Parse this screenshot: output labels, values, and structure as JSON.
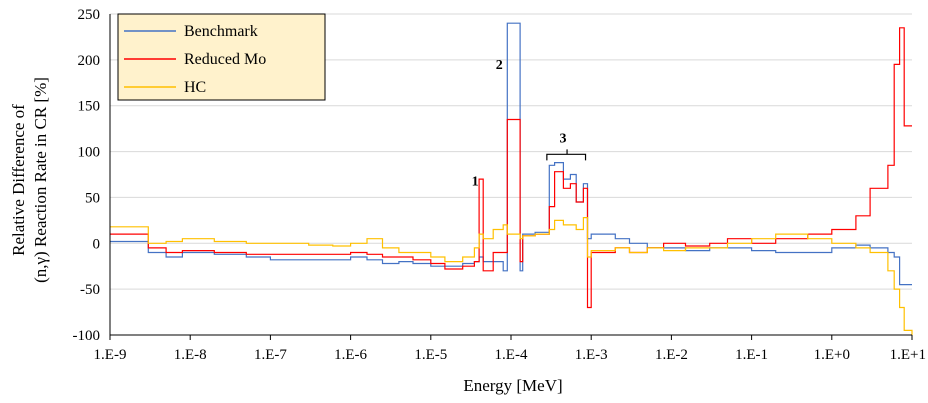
{
  "chart_data": {
    "type": "line",
    "xlabel": "Energy [MeV]",
    "ylabel_line1": "Relative Difference of",
    "ylabel_line2": "(n,γ) Reaction Rate in CR [%]",
    "x_scale": "log",
    "xlim": [
      1e-09,
      10
    ],
    "ylim": [
      -100,
      250
    ],
    "x_tick_values": [
      1e-09,
      1e-08,
      1e-07,
      1e-06,
      1e-05,
      0.0001,
      0.001,
      0.01,
      0.1,
      1,
      10
    ],
    "x_tick_labels": [
      "1.E-9",
      "1.E-8",
      "1.E-7",
      "1.E-6",
      "1.E-5",
      "1.E-4",
      "1.E-3",
      "1.E-2",
      "1.E-1",
      "1.E+0",
      "1.E+1"
    ],
    "y_ticks": [
      250,
      200,
      150,
      100,
      50,
      0,
      -50,
      -100
    ],
    "grid": "horizontal",
    "legend_position": "top-left",
    "annotations": [
      {
        "label": "1",
        "x": 4e-05,
        "y": 63
      },
      {
        "label": "2",
        "x": 8e-05,
        "y": 190
      },
      {
        "label": "3",
        "x": 0.0005,
        "y": 110
      }
    ],
    "series": [
      {
        "name": "Benchmark",
        "color": "#4472C4",
        "x": [
          1e-09,
          3e-09,
          5e-09,
          8e-09,
          2e-08,
          5e-08,
          1e-07,
          3e-07,
          6e-07,
          1e-06,
          1.6e-06,
          2.5e-06,
          4e-06,
          6e-06,
          1e-05,
          1.5e-05,
          2.5e-05,
          3.5e-05,
          4e-05,
          4.5e-05,
          6e-05,
          8e-05,
          9e-05,
          0.0001,
          0.00013,
          0.00014,
          0.0002,
          0.0003,
          0.00035,
          0.00045,
          0.00055,
          0.00065,
          0.0008,
          0.0009,
          0.001,
          0.002,
          0.003,
          0.005,
          0.008,
          0.015,
          0.03,
          0.05,
          0.1,
          0.2,
          0.5,
          1,
          2,
          3,
          5,
          6,
          7,
          8,
          10
        ],
        "y": [
          2,
          -10,
          -15,
          -10,
          -12,
          -15,
          -18,
          -18,
          -18,
          -15,
          -18,
          -22,
          -20,
          -22,
          -25,
          -25,
          -22,
          -20,
          -15,
          -20,
          -20,
          -30,
          240,
          240,
          -30,
          10,
          12,
          85,
          88,
          70,
          75,
          45,
          65,
          5,
          10,
          5,
          0,
          -5,
          -5,
          -8,
          -5,
          -5,
          -8,
          -10,
          -10,
          -5,
          -2,
          -5,
          -10,
          -15,
          -45,
          -45,
          -45
        ]
      },
      {
        "name": "Reduced Mo",
        "color": "#FF0000",
        "x": [
          1e-09,
          3e-09,
          5e-09,
          8e-09,
          2e-08,
          5e-08,
          1e-07,
          3e-07,
          6e-07,
          1e-06,
          1.6e-06,
          2.5e-06,
          4e-06,
          6e-06,
          1e-05,
          1.5e-05,
          2.5e-05,
          3.5e-05,
          4e-05,
          4.5e-05,
          6e-05,
          8e-05,
          9e-05,
          0.0001,
          0.00013,
          0.00014,
          0.0002,
          0.0003,
          0.00035,
          0.00045,
          0.00055,
          0.00065,
          0.0008,
          0.0009,
          0.001,
          0.002,
          0.003,
          0.005,
          0.008,
          0.015,
          0.03,
          0.05,
          0.1,
          0.2,
          0.5,
          1,
          2,
          3,
          5,
          6,
          7,
          8,
          10
        ],
        "y": [
          10,
          -5,
          -10,
          -8,
          -10,
          -12,
          -12,
          -12,
          -12,
          -10,
          -12,
          -15,
          -15,
          -18,
          -22,
          -28,
          -25,
          -20,
          70,
          -30,
          -10,
          -10,
          135,
          135,
          -20,
          8,
          10,
          40,
          78,
          60,
          65,
          45,
          60,
          -70,
          -10,
          -5,
          -10,
          -5,
          0,
          -3,
          0,
          5,
          0,
          5,
          10,
          15,
          30,
          60,
          85,
          195,
          235,
          128,
          128
        ]
      },
      {
        "name": "HC",
        "color": "#FFC000",
        "x": [
          1e-09,
          3e-09,
          5e-09,
          8e-09,
          2e-08,
          5e-08,
          1e-07,
          3e-07,
          6e-07,
          1e-06,
          1.6e-06,
          2.5e-06,
          4e-06,
          6e-06,
          1e-05,
          1.5e-05,
          2.5e-05,
          3.5e-05,
          4e-05,
          4.5e-05,
          6e-05,
          8e-05,
          9e-05,
          0.0001,
          0.00013,
          0.00014,
          0.0002,
          0.0003,
          0.00035,
          0.00045,
          0.00055,
          0.00065,
          0.0008,
          0.0009,
          0.001,
          0.002,
          0.003,
          0.005,
          0.008,
          0.015,
          0.03,
          0.05,
          0.1,
          0.2,
          0.5,
          1,
          2,
          3,
          5,
          6,
          7,
          8,
          10
        ],
        "y": [
          18,
          0,
          2,
          5,
          2,
          0,
          0,
          -2,
          -3,
          0,
          5,
          -5,
          -10,
          -10,
          -15,
          -20,
          -15,
          -5,
          10,
          5,
          15,
          20,
          10,
          10,
          5,
          8,
          10,
          15,
          25,
          20,
          20,
          15,
          28,
          -15,
          -8,
          -5,
          -10,
          -5,
          -8,
          -5,
          -5,
          0,
          5,
          10,
          5,
          0,
          -5,
          -10,
          -30,
          -50,
          -70,
          -95,
          -100
        ]
      }
    ]
  }
}
